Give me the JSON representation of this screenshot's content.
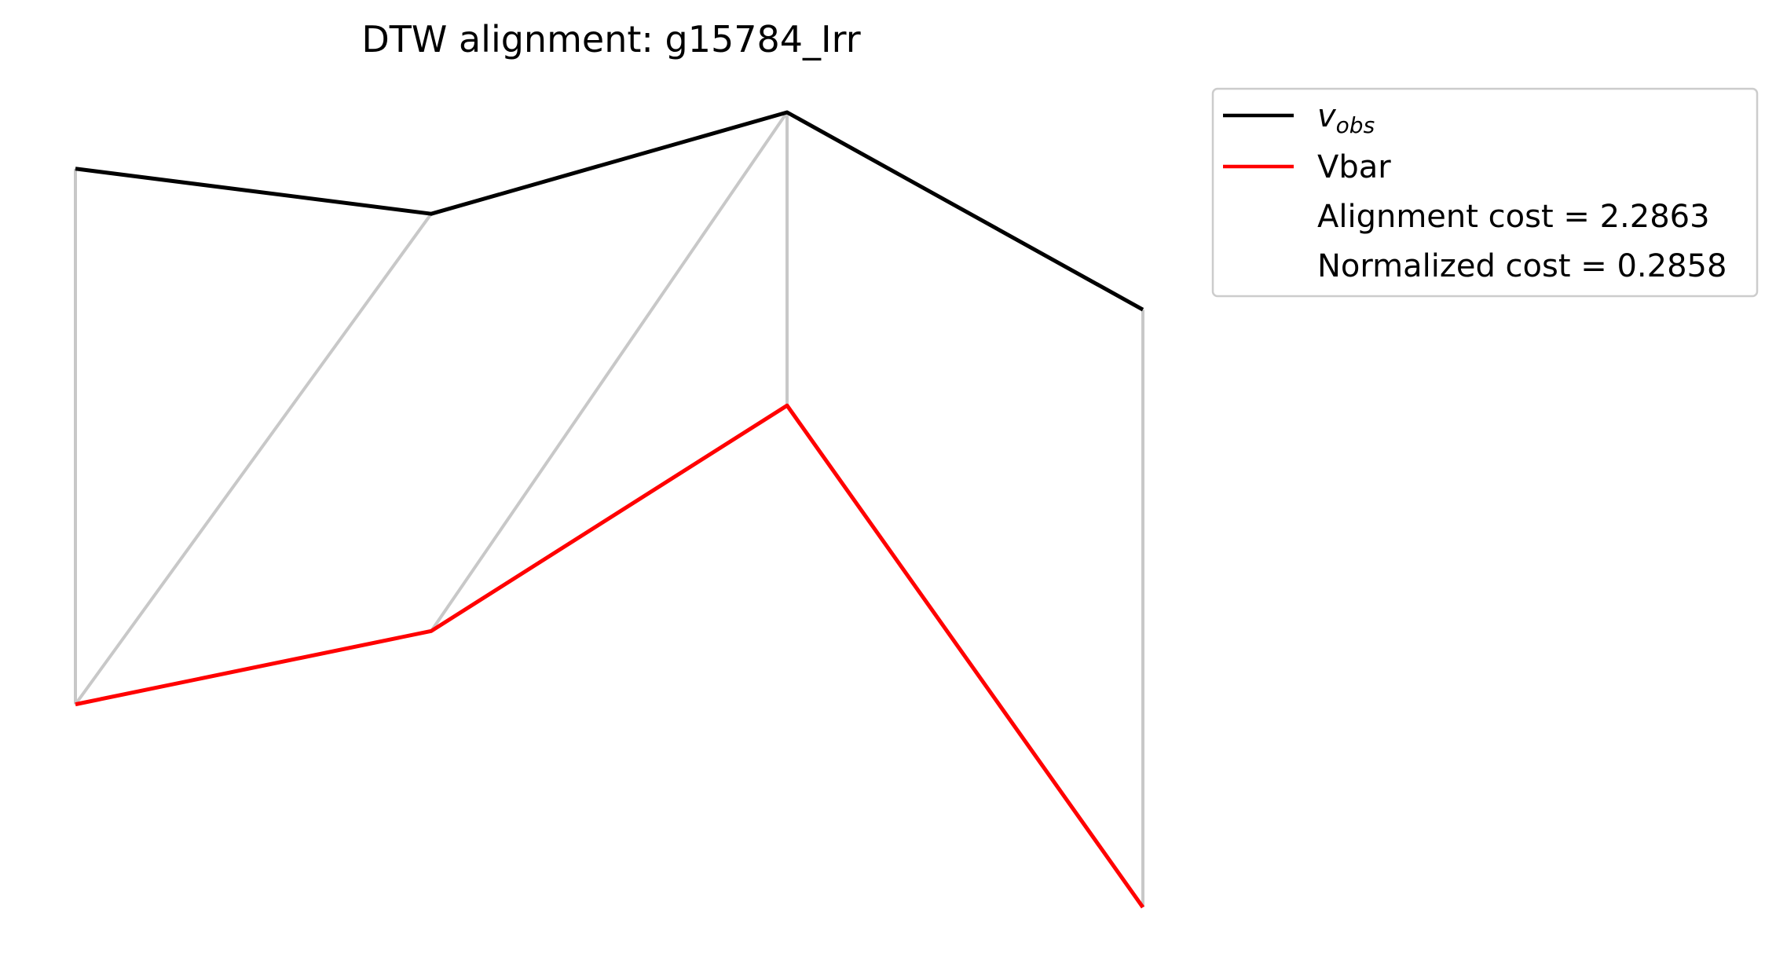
{
  "chart_data": {
    "type": "line",
    "title": "DTW alignment: g15784_Irr",
    "axes_visible": false,
    "x": [
      0,
      1,
      2,
      3
    ],
    "series": [
      {
        "name": "v_obs",
        "legend_base": "v",
        "legend_sub": "obs",
        "color": "#000000",
        "values": [
          0.62,
          0.54,
          0.72,
          0.37
        ]
      },
      {
        "name": "Vbar",
        "color": "#ff0000",
        "values": [
          -0.33,
          -0.2,
          0.2,
          -0.69
        ]
      }
    ],
    "alignment_pairs": [
      [
        0,
        0
      ],
      [
        1,
        0
      ],
      [
        2,
        1
      ],
      [
        2,
        2
      ],
      [
        3,
        3
      ]
    ],
    "alignment_color": "#c8c8c8",
    "legend": {
      "placement": "outside-right-top",
      "cost_text": "Alignment cost = 2.2863",
      "normalized_text": "Normalized cost = 0.2858"
    }
  }
}
